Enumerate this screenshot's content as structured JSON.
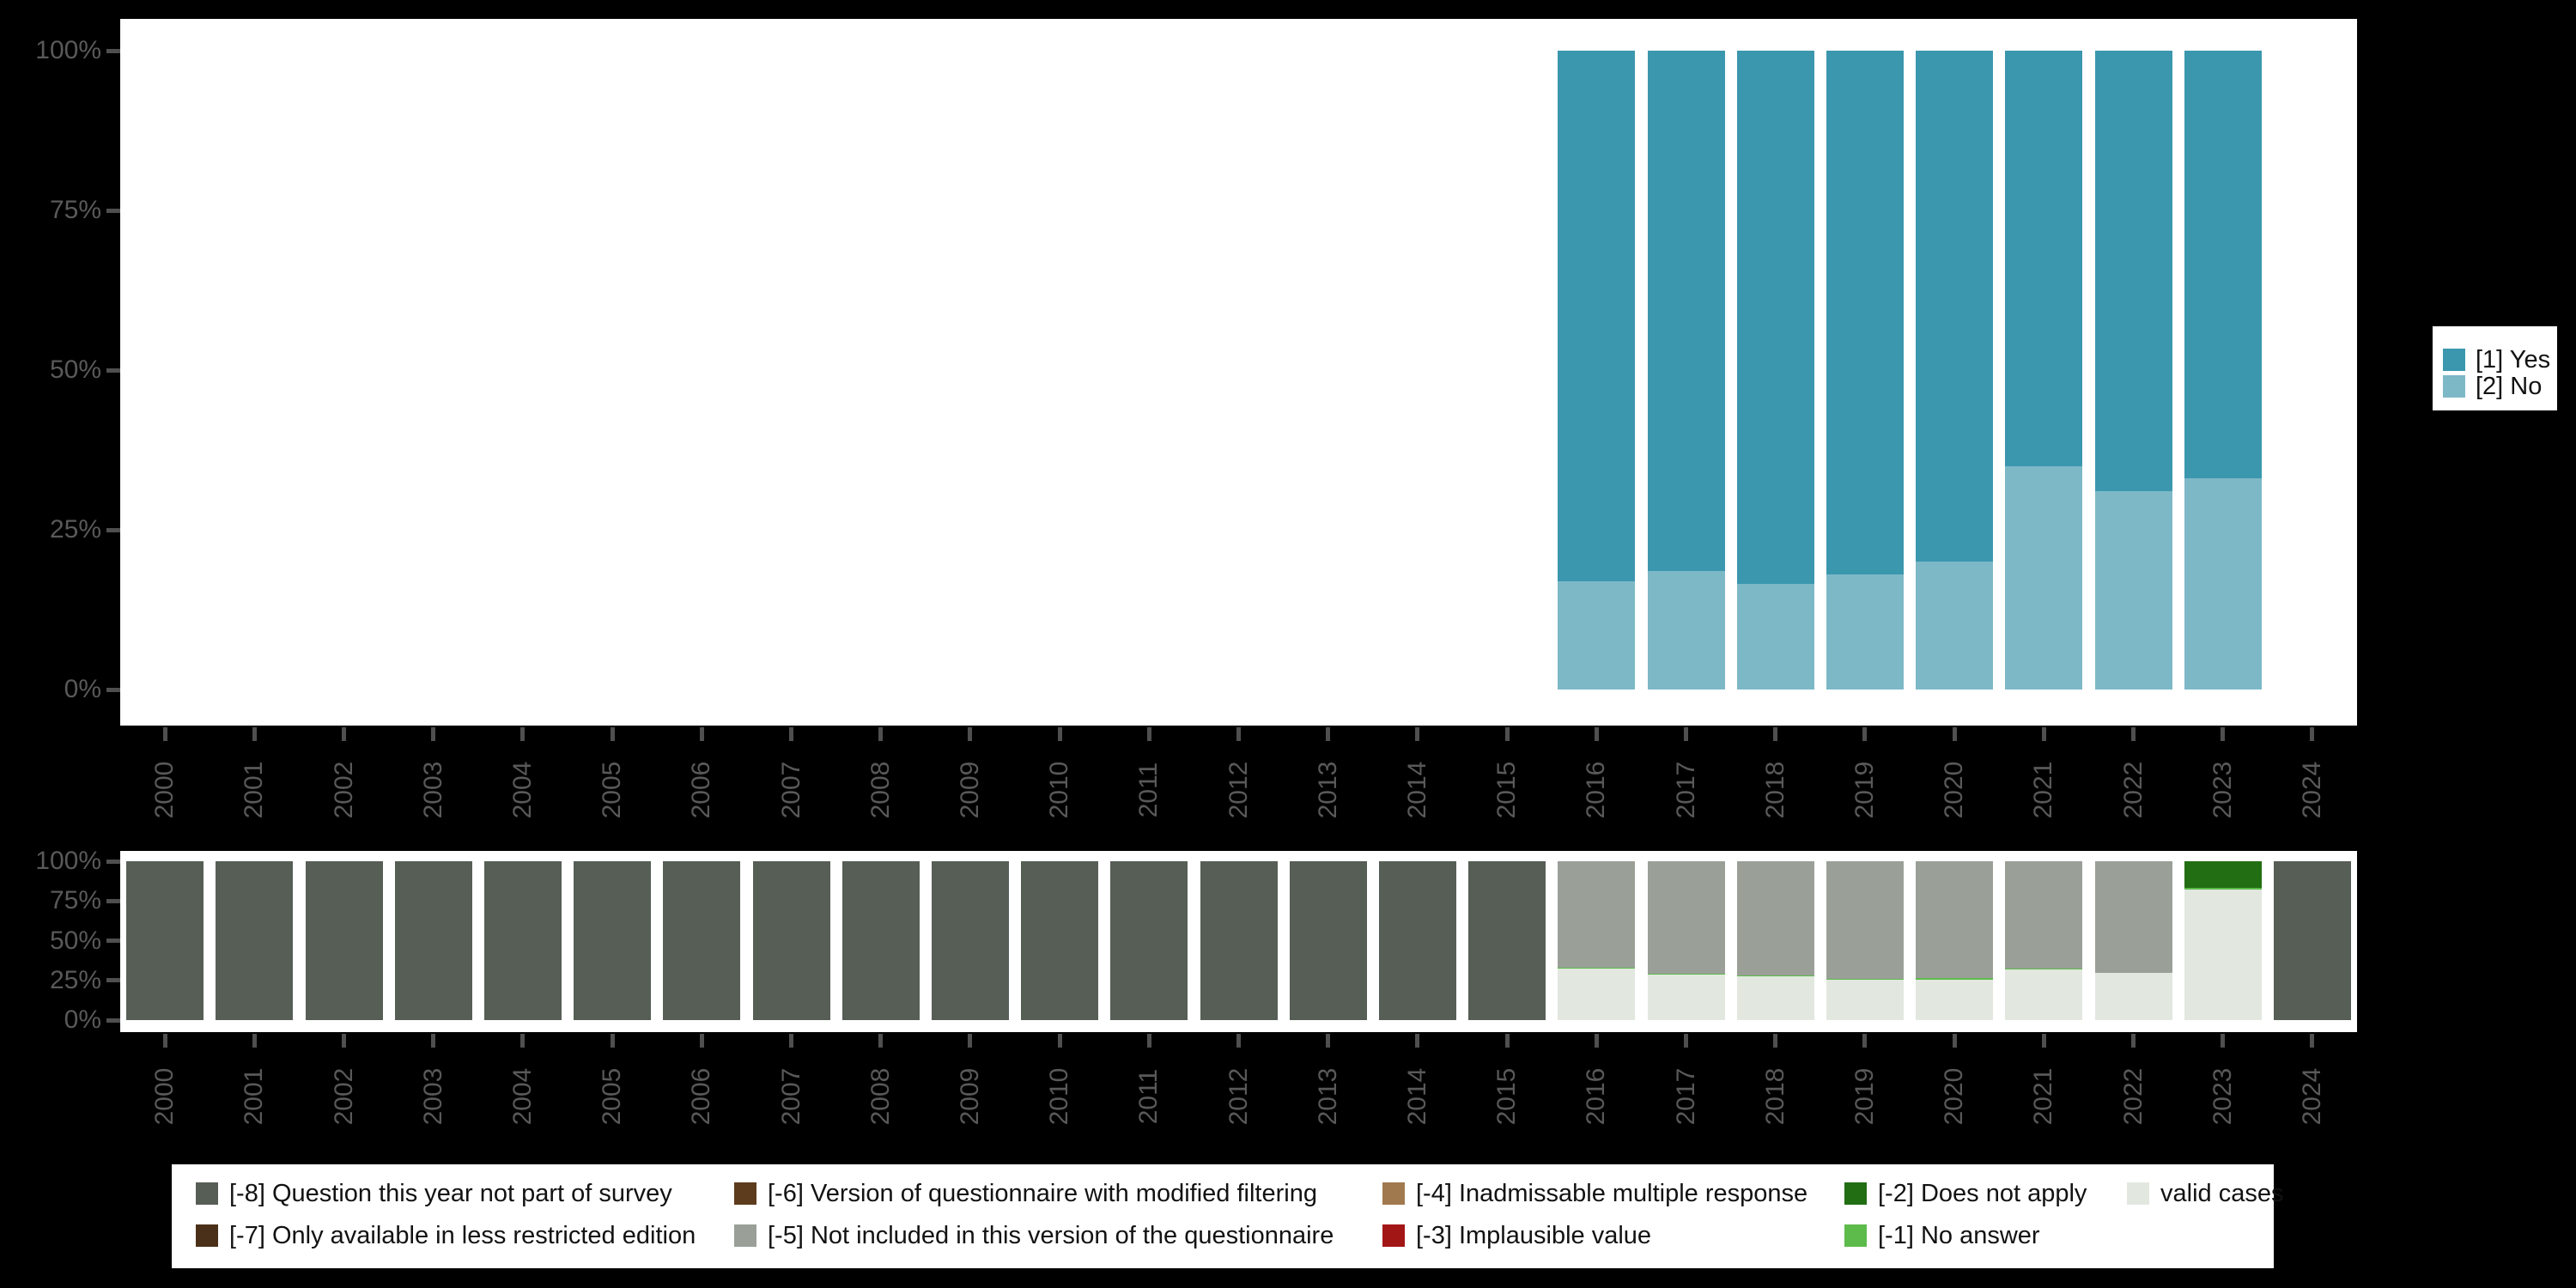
{
  "colors": {
    "background": "#000000",
    "plot_background": "#ffffff",
    "axis_text": "#595959",
    "tick_mark": "#4f4f4f",
    "legend_text": "#121212"
  },
  "legends": {
    "answers": {
      "position": "right",
      "items": [
        {
          "label": "[1] Yes",
          "color": "#3b97ae"
        },
        {
          "label": "[2] No",
          "color": "#7db8c7"
        }
      ]
    },
    "missing": {
      "position": "bottom",
      "items": [
        {
          "code": "-8",
          "label": "[-8] Question this year not part of survey",
          "color": "#565e56"
        },
        {
          "code": "-7",
          "label": "[-7] Only available in less restricted edition",
          "color": "#4a3018"
        },
        {
          "code": "-6",
          "label": "[-6] Version of questionnaire with modified filtering",
          "color": "#5d3c1d"
        },
        {
          "code": "-5",
          "label": "[-5] Not included in this version of the questionnaire",
          "color": "#9aa098"
        },
        {
          "code": "-4",
          "label": "[-4] Inadmissable multiple response",
          "color": "#a1794f"
        },
        {
          "code": "-3",
          "label": "[-3] Implausible value",
          "color": "#a31616"
        },
        {
          "code": "-2",
          "label": "[-2] Does not apply",
          "color": "#226e13"
        },
        {
          "code": "-1",
          "label": "[-1] No answer",
          "color": "#5cbb4b"
        },
        {
          "code": "valid",
          "label": "valid cases",
          "color": "#e2e7e0"
        }
      ]
    }
  },
  "chart_data": [
    {
      "id": "answers-by-year",
      "type": "bar",
      "stacked": true,
      "title": "",
      "xlabel": "",
      "ylabel": "",
      "ylim": [
        0,
        100
      ],
      "grid": false,
      "legend_position": "right",
      "y_tick_labels": [
        "100%",
        "75%",
        "50%",
        "25%",
        "0%"
      ],
      "categories": [
        "2000",
        "2001",
        "2002",
        "2003",
        "2004",
        "2005",
        "2006",
        "2007",
        "2008",
        "2009",
        "2010",
        "2011",
        "2012",
        "2013",
        "2014",
        "2015",
        "2016",
        "2017",
        "2018",
        "2019",
        "2020",
        "2021",
        "2022",
        "2023",
        "2024"
      ],
      "series": [
        {
          "name": "[1] Yes",
          "color": "#3b97ae",
          "values": [
            0,
            0,
            0,
            0,
            0,
            0,
            0,
            0,
            0,
            0,
            0,
            0,
            0,
            0,
            0,
            0,
            83,
            81.5,
            83.5,
            82,
            80,
            65,
            69,
            67,
            0
          ]
        },
        {
          "name": "[2] No",
          "color": "#7db8c7",
          "values": [
            0,
            0,
            0,
            0,
            0,
            0,
            0,
            0,
            0,
            0,
            0,
            0,
            0,
            0,
            0,
            0,
            17,
            18.5,
            16.5,
            18,
            20,
            35,
            31,
            33,
            0
          ]
        }
      ]
    },
    {
      "id": "missing-values-by-year",
      "type": "bar",
      "stacked": true,
      "title": "",
      "xlabel": "",
      "ylabel": "",
      "ylim": [
        0,
        100
      ],
      "grid": false,
      "legend_position": "bottom",
      "y_tick_labels": [
        "100%",
        "75%",
        "50%",
        "25%",
        "0%"
      ],
      "categories": [
        "2000",
        "2001",
        "2002",
        "2003",
        "2004",
        "2005",
        "2006",
        "2007",
        "2008",
        "2009",
        "2010",
        "2011",
        "2012",
        "2013",
        "2014",
        "2015",
        "2016",
        "2017",
        "2018",
        "2019",
        "2020",
        "2021",
        "2022",
        "2023",
        "2024"
      ],
      "series_order_note": "series listed top-to-bottom within each stacked bar",
      "series": [
        {
          "name": "[-8] Question this year not part of survey",
          "color": "#565e56",
          "values": [
            100,
            100,
            100,
            100,
            100,
            100,
            100,
            100,
            100,
            100,
            100,
            100,
            100,
            100,
            100,
            100,
            0,
            0,
            0,
            0,
            0,
            0,
            0,
            0,
            100
          ]
        },
        {
          "name": "[-5] Not included in this version of the questionnaire",
          "color": "#9aa098",
          "values": [
            0,
            0,
            0,
            0,
            0,
            0,
            0,
            0,
            0,
            0,
            0,
            0,
            0,
            0,
            0,
            0,
            67,
            71,
            71.9,
            73.9,
            73.7,
            67.6,
            70,
            0,
            0
          ]
        },
        {
          "name": "[-2] Does not apply",
          "color": "#226e13",
          "values": [
            0,
            0,
            0,
            0,
            0,
            0,
            0,
            0,
            0,
            0,
            0,
            0,
            0,
            0,
            0,
            0,
            0,
            0,
            0,
            0,
            0,
            0,
            0,
            17,
            0
          ]
        },
        {
          "name": "[-1] No answer",
          "color": "#5cbb4b",
          "values": [
            0,
            0,
            0,
            0,
            0,
            0,
            0,
            0,
            0,
            0,
            0,
            0,
            0,
            0,
            0,
            0,
            0.7,
            0.6,
            0.6,
            0.6,
            1,
            0.6,
            0,
            1,
            0
          ]
        },
        {
          "name": "valid cases",
          "color": "#e2e7e0",
          "values": [
            0,
            0,
            0,
            0,
            0,
            0,
            0,
            0,
            0,
            0,
            0,
            0,
            0,
            0,
            0,
            0,
            32.3,
            28.4,
            27.5,
            25.5,
            25.3,
            31.8,
            30,
            82,
            0
          ]
        }
      ]
    }
  ]
}
